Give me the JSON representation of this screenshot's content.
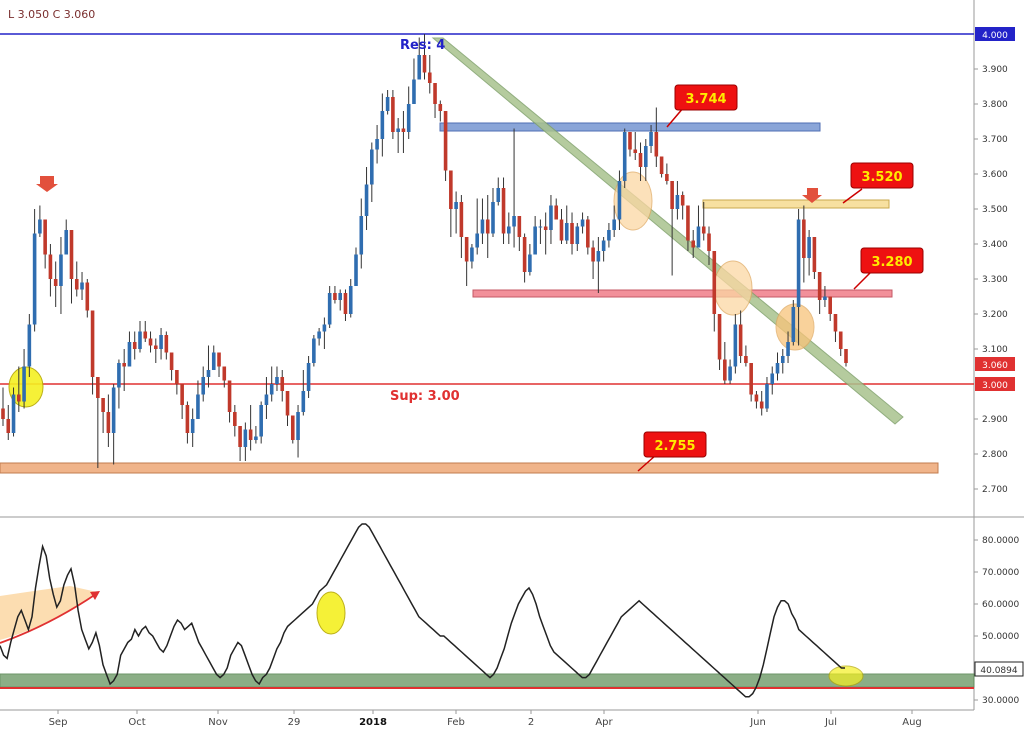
{
  "chart_data": [
    {
      "type": "candlestick",
      "panel": "price",
      "header": "L 3.050   C 3.060",
      "y_ticks": [
        "3.900",
        "3.800",
        "3.700",
        "3.600",
        "3.500",
        "3.400",
        "3.300",
        "3.200",
        "3.100",
        "2.900",
        "2.800",
        "2.700"
      ],
      "ylim": [
        2.62,
        4.09
      ],
      "last_price_tag": "3.060",
      "level_tags": {
        "top": "4.000",
        "support": "3.000"
      },
      "annotations": {
        "resistance_label": "Res: 4",
        "support_label": "Sup: 3.00",
        "callouts": [
          "3.744",
          "3.520",
          "3.280",
          "2.755"
        ]
      },
      "candles": [
        [
          2.93,
          2.99,
          2.88,
          2.9
        ],
        [
          2.9,
          2.94,
          2.84,
          2.86
        ],
        [
          2.86,
          2.99,
          2.85,
          2.97
        ],
        [
          2.97,
          3.05,
          2.92,
          2.95
        ],
        [
          2.95,
          3.1,
          2.93,
          3.05
        ],
        [
          3.05,
          3.2,
          3.02,
          3.17
        ],
        [
          3.17,
          3.5,
          3.15,
          3.43
        ],
        [
          3.43,
          3.51,
          3.42,
          3.47
        ],
        [
          3.47,
          3.47,
          3.33,
          3.37
        ],
        [
          3.37,
          3.4,
          3.25,
          3.3
        ],
        [
          3.3,
          3.35,
          3.22,
          3.28
        ],
        [
          3.28,
          3.42,
          3.2,
          3.37
        ],
        [
          3.37,
          3.47,
          3.37,
          3.44
        ],
        [
          3.44,
          3.44,
          3.23,
          3.3
        ],
        [
          3.3,
          3.35,
          3.25,
          3.27
        ],
        [
          3.27,
          3.32,
          3.24,
          3.29
        ],
        [
          3.29,
          3.3,
          3.19,
          3.21
        ],
        [
          3.21,
          3.21,
          2.97,
          3.02
        ],
        [
          3.02,
          3.02,
          2.76,
          2.96
        ],
        [
          2.96,
          2.96,
          2.86,
          2.92
        ],
        [
          2.92,
          2.97,
          2.82,
          2.86
        ],
        [
          2.86,
          3.0,
          2.77,
          2.99
        ],
        [
          2.99,
          3.07,
          2.93,
          3.06
        ],
        [
          3.06,
          3.1,
          2.98,
          3.05
        ],
        [
          3.05,
          3.15,
          3.05,
          3.12
        ],
        [
          3.12,
          3.15,
          3.07,
          3.1
        ],
        [
          3.1,
          3.18,
          3.09,
          3.15
        ],
        [
          3.15,
          3.18,
          3.12,
          3.13
        ],
        [
          3.13,
          3.15,
          3.09,
          3.11
        ],
        [
          3.11,
          3.13,
          3.06,
          3.1
        ],
        [
          3.1,
          3.16,
          3.07,
          3.14
        ],
        [
          3.14,
          3.15,
          3.07,
          3.09
        ],
        [
          3.09,
          3.09,
          3.01,
          3.04
        ],
        [
          3.04,
          3.04,
          2.97,
          3.0
        ],
        [
          3.0,
          3.0,
          2.9,
          2.94
        ],
        [
          2.94,
          2.95,
          2.83,
          2.86
        ],
        [
          2.86,
          2.93,
          2.82,
          2.9
        ],
        [
          2.9,
          3.01,
          2.9,
          2.97
        ],
        [
          2.97,
          3.05,
          2.95,
          3.02
        ],
        [
          3.02,
          3.11,
          2.99,
          3.04
        ],
        [
          3.04,
          3.11,
          3.04,
          3.09
        ],
        [
          3.09,
          3.09,
          3.02,
          3.05
        ],
        [
          3.05,
          3.05,
          2.99,
          3.01
        ],
        [
          3.01,
          3.01,
          2.89,
          2.92
        ],
        [
          2.92,
          2.94,
          2.85,
          2.88
        ],
        [
          2.88,
          2.88,
          2.78,
          2.82
        ],
        [
          2.82,
          2.89,
          2.78,
          2.87
        ],
        [
          2.87,
          2.94,
          2.81,
          2.84
        ],
        [
          2.84,
          2.88,
          2.83,
          2.85
        ],
        [
          2.85,
          2.95,
          2.83,
          2.94
        ],
        [
          2.94,
          3.02,
          2.9,
          2.97
        ],
        [
          2.97,
          3.05,
          2.95,
          3.0
        ],
        [
          3.0,
          3.05,
          2.98,
          3.02
        ],
        [
          3.02,
          3.04,
          2.95,
          2.98
        ],
        [
          2.98,
          2.98,
          2.88,
          2.91
        ],
        [
          2.91,
          2.91,
          2.83,
          2.84
        ],
        [
          2.84,
          2.94,
          2.79,
          2.92
        ],
        [
          2.92,
          3.04,
          2.91,
          2.98
        ],
        [
          2.98,
          3.08,
          2.96,
          3.06
        ],
        [
          3.06,
          3.14,
          3.05,
          3.13
        ],
        [
          3.13,
          3.16,
          3.11,
          3.15
        ],
        [
          3.15,
          3.19,
          3.1,
          3.17
        ],
        [
          3.17,
          3.28,
          3.16,
          3.26
        ],
        [
          3.26,
          3.28,
          3.23,
          3.24
        ],
        [
          3.24,
          3.27,
          3.21,
          3.26
        ],
        [
          3.26,
          3.27,
          3.18,
          3.2
        ],
        [
          3.2,
          3.3,
          3.19,
          3.28
        ],
        [
          3.28,
          3.39,
          3.28,
          3.37
        ],
        [
          3.37,
          3.53,
          3.33,
          3.48
        ],
        [
          3.48,
          3.62,
          3.44,
          3.57
        ],
        [
          3.57,
          3.69,
          3.52,
          3.67
        ],
        [
          3.67,
          3.74,
          3.63,
          3.7
        ],
        [
          3.7,
          3.83,
          3.65,
          3.78
        ],
        [
          3.78,
          3.84,
          3.77,
          3.82
        ],
        [
          3.82,
          3.84,
          3.7,
          3.72
        ],
        [
          3.72,
          3.76,
          3.66,
          3.73
        ],
        [
          3.73,
          3.78,
          3.66,
          3.72
        ],
        [
          3.72,
          3.85,
          3.7,
          3.8
        ],
        [
          3.8,
          3.93,
          3.8,
          3.87
        ],
        [
          3.87,
          3.99,
          3.87,
          3.94
        ],
        [
          3.94,
          4.0,
          3.87,
          3.89
        ],
        [
          3.89,
          3.94,
          3.83,
          3.86
        ],
        [
          3.86,
          3.86,
          3.76,
          3.8
        ],
        [
          3.8,
          3.81,
          3.75,
          3.78
        ],
        [
          3.78,
          3.78,
          3.58,
          3.61
        ],
        [
          3.61,
          3.61,
          3.42,
          3.5
        ],
        [
          3.5,
          3.55,
          3.43,
          3.52
        ],
        [
          3.52,
          3.54,
          3.36,
          3.42
        ],
        [
          3.42,
          3.42,
          3.28,
          3.35
        ],
        [
          3.35,
          3.4,
          3.33,
          3.39
        ],
        [
          3.39,
          3.53,
          3.37,
          3.43
        ],
        [
          3.43,
          3.53,
          3.4,
          3.47
        ],
        [
          3.47,
          3.54,
          3.36,
          3.43
        ],
        [
          3.43,
          3.56,
          3.42,
          3.52
        ],
        [
          3.52,
          3.59,
          3.51,
          3.56
        ],
        [
          3.56,
          3.59,
          3.4,
          3.43
        ],
        [
          3.43,
          3.49,
          3.4,
          3.45
        ],
        [
          3.45,
          3.73,
          3.39,
          3.48
        ],
        [
          3.48,
          3.48,
          3.38,
          3.42
        ],
        [
          3.42,
          3.43,
          3.29,
          3.32
        ],
        [
          3.32,
          3.4,
          3.31,
          3.37
        ],
        [
          3.37,
          3.48,
          3.37,
          3.45
        ],
        [
          3.45,
          3.47,
          3.4,
          3.45
        ],
        [
          3.45,
          3.49,
          3.37,
          3.44
        ],
        [
          3.44,
          3.54,
          3.4,
          3.51
        ],
        [
          3.51,
          3.53,
          3.47,
          3.47
        ],
        [
          3.47,
          3.5,
          3.4,
          3.41
        ],
        [
          3.41,
          3.51,
          3.4,
          3.46
        ],
        [
          3.46,
          3.49,
          3.37,
          3.4
        ],
        [
          3.4,
          3.46,
          3.38,
          3.45
        ],
        [
          3.45,
          3.49,
          3.43,
          3.47
        ],
        [
          3.47,
          3.48,
          3.37,
          3.39
        ],
        [
          3.39,
          3.41,
          3.3,
          3.35
        ],
        [
          3.35,
          3.42,
          3.26,
          3.38
        ],
        [
          3.38,
          3.42,
          3.35,
          3.41
        ],
        [
          3.41,
          3.46,
          3.39,
          3.44
        ],
        [
          3.44,
          3.51,
          3.42,
          3.47
        ],
        [
          3.47,
          3.61,
          3.44,
          3.58
        ],
        [
          3.58,
          3.73,
          3.56,
          3.72
        ],
        [
          3.72,
          3.72,
          3.65,
          3.67
        ],
        [
          3.67,
          3.72,
          3.64,
          3.66
        ],
        [
          3.66,
          3.69,
          3.58,
          3.62
        ],
        [
          3.62,
          3.7,
          3.58,
          3.68
        ],
        [
          3.68,
          3.74,
          3.66,
          3.72
        ],
        [
          3.72,
          3.79,
          3.62,
          3.65
        ],
        [
          3.65,
          3.65,
          3.59,
          3.6
        ],
        [
          3.6,
          3.63,
          3.57,
          3.58
        ],
        [
          3.58,
          3.58,
          3.31,
          3.5
        ],
        [
          3.5,
          3.58,
          3.47,
          3.54
        ],
        [
          3.54,
          3.55,
          3.47,
          3.51
        ],
        [
          3.51,
          3.51,
          3.38,
          3.41
        ],
        [
          3.41,
          3.44,
          3.36,
          3.39
        ],
        [
          3.39,
          3.51,
          3.39,
          3.45
        ],
        [
          3.45,
          3.52,
          3.41,
          3.43
        ],
        [
          3.43,
          3.45,
          3.34,
          3.38
        ],
        [
          3.38,
          3.38,
          3.15,
          3.2
        ],
        [
          3.2,
          3.2,
          3.04,
          3.07
        ],
        [
          3.07,
          3.12,
          3.0,
          3.01
        ],
        [
          3.01,
          3.07,
          3.0,
          3.05
        ],
        [
          3.05,
          3.2,
          3.03,
          3.17
        ],
        [
          3.17,
          3.21,
          3.06,
          3.08
        ],
        [
          3.08,
          3.11,
          3.05,
          3.06
        ],
        [
          3.06,
          3.06,
          2.95,
          2.97
        ],
        [
          2.97,
          2.98,
          2.93,
          2.95
        ],
        [
          2.95,
          2.98,
          2.91,
          2.93
        ],
        [
          2.93,
          3.02,
          2.92,
          3.0
        ],
        [
          3.0,
          3.05,
          2.97,
          3.03
        ],
        [
          3.03,
          3.09,
          3.01,
          3.06
        ],
        [
          3.06,
          3.1,
          3.03,
          3.08
        ],
        [
          3.08,
          3.15,
          3.06,
          3.12
        ],
        [
          3.12,
          3.24,
          3.11,
          3.22
        ],
        [
          3.22,
          3.5,
          3.11,
          3.47
        ],
        [
          3.47,
          3.51,
          3.29,
          3.36
        ],
        [
          3.36,
          3.44,
          3.31,
          3.42
        ],
        [
          3.42,
          3.42,
          3.3,
          3.32
        ],
        [
          3.32,
          3.32,
          3.2,
          3.24
        ],
        [
          3.24,
          3.28,
          3.22,
          3.25
        ],
        [
          3.25,
          3.25,
          3.18,
          3.2
        ],
        [
          3.2,
          3.2,
          3.12,
          3.15
        ],
        [
          3.15,
          3.15,
          3.08,
          3.1
        ],
        [
          3.1,
          3.1,
          3.05,
          3.06
        ]
      ]
    },
    {
      "type": "line",
      "panel": "indicator",
      "y_ticks": [
        "80.0000",
        "70.0000",
        "60.0000",
        "50.0000",
        "30.0000"
      ],
      "ylim": [
        27,
        86
      ],
      "last_value_tag": "40.0894",
      "x_ticks": [
        "Sep",
        "Oct",
        "Nov",
        "29",
        "2018",
        "Feb",
        "2",
        "Apr",
        "Jun",
        "Jul",
        "Aug"
      ],
      "values": [
        47,
        44,
        43,
        48,
        52,
        56,
        58,
        55,
        52,
        56,
        65,
        72,
        78,
        75,
        68,
        63,
        59,
        61,
        66,
        69,
        71,
        66,
        58,
        52,
        49,
        46,
        48,
        51,
        47,
        41,
        38,
        35,
        36,
        38,
        44,
        46,
        48,
        49,
        52,
        50,
        52,
        53,
        51,
        50,
        48,
        46,
        45,
        47,
        50,
        53,
        55,
        54,
        52,
        53,
        54,
        51,
        48,
        46,
        44,
        42,
        40,
        38,
        37,
        38,
        40,
        44,
        46,
        48,
        47,
        44,
        41,
        38,
        36,
        35,
        37,
        38,
        40,
        43,
        46,
        48,
        51,
        53,
        54,
        55,
        56,
        57,
        58,
        59,
        60,
        62,
        64,
        65,
        66,
        68,
        70,
        72,
        74,
        76,
        78,
        80,
        82,
        84,
        85,
        85,
        84,
        82,
        80,
        78,
        76,
        74,
        72,
        70,
        68,
        66,
        64,
        62,
        60,
        58,
        56,
        55,
        54,
        53,
        52,
        51,
        50,
        50,
        49,
        48,
        47,
        46,
        45,
        44,
        43,
        42,
        41,
        40,
        39,
        38,
        37,
        38,
        40,
        43,
        46,
        50,
        54,
        57,
        60,
        62,
        64,
        65,
        63,
        60,
        56,
        53,
        50,
        47,
        45,
        44,
        43,
        42,
        41,
        40,
        39,
        38,
        37,
        37,
        38,
        40,
        42,
        44,
        46,
        48,
        50,
        52,
        54,
        56,
        57,
        58,
        59,
        60,
        61,
        60,
        59,
        58,
        57,
        56,
        55,
        54,
        53,
        52,
        51,
        50,
        49,
        48,
        47,
        46,
        45,
        44,
        43,
        42,
        41,
        40,
        39,
        38,
        37,
        36,
        35,
        34,
        33,
        32,
        31,
        31,
        32,
        34,
        37,
        41,
        46,
        51,
        56,
        59,
        61,
        61,
        60,
        57,
        55,
        52,
        51,
        50,
        49,
        48,
        47,
        46,
        45,
        44,
        43,
        42,
        41,
        40,
        40
      ]
    }
  ]
}
